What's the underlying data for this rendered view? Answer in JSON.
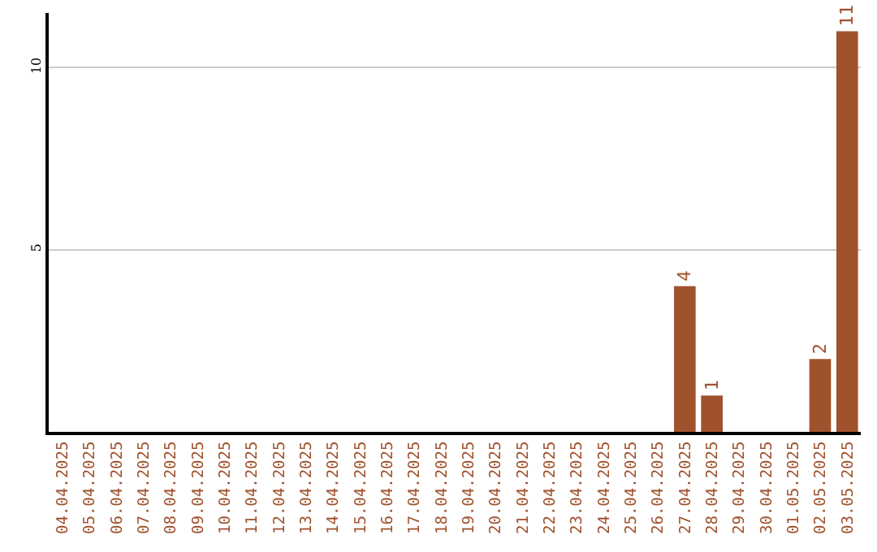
{
  "chart_data": {
    "type": "bar",
    "categories": [
      "04.04.2025",
      "05.04.2025",
      "06.04.2025",
      "07.04.2025",
      "08.04.2025",
      "09.04.2025",
      "10.04.2025",
      "11.04.2025",
      "12.04.2025",
      "13.04.2025",
      "14.04.2025",
      "15.04.2025",
      "16.04.2025",
      "17.04.2025",
      "18.04.2025",
      "19.04.2025",
      "20.04.2025",
      "21.04.2025",
      "22.04.2025",
      "23.04.2025",
      "24.04.2025",
      "25.04.2025",
      "26.04.2025",
      "27.04.2025",
      "28.04.2025",
      "29.04.2025",
      "30.04.2025",
      "01.05.2025",
      "02.05.2025",
      "03.05.2025"
    ],
    "values": [
      0,
      0,
      0,
      0,
      0,
      0,
      0,
      0,
      0,
      0,
      0,
      0,
      0,
      0,
      0,
      0,
      0,
      0,
      0,
      0,
      0,
      0,
      0,
      4,
      1,
      0,
      0,
      0,
      2,
      11
    ],
    "value_labels": [
      null,
      null,
      null,
      null,
      null,
      null,
      null,
      null,
      null,
      null,
      null,
      null,
      null,
      null,
      null,
      null,
      null,
      null,
      null,
      null,
      null,
      null,
      null,
      "4",
      "1",
      null,
      null,
      null,
      "2",
      "11"
    ],
    "color": "#a0522d",
    "ylim": [
      0,
      11.5
    ],
    "yticks": [
      5,
      10
    ],
    "grid": "y",
    "legend": false
  }
}
